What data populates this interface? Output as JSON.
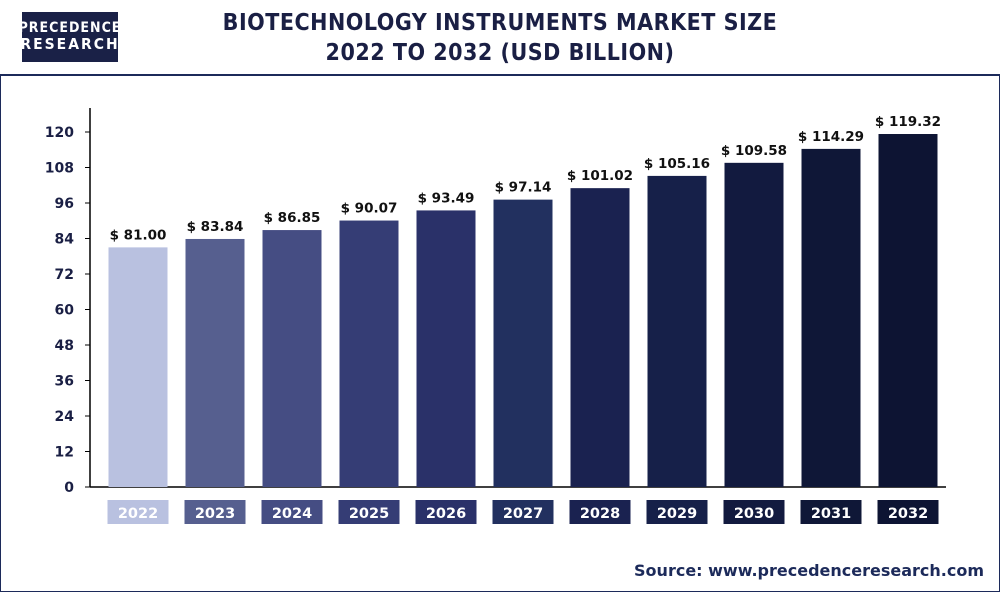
{
  "header": {
    "logo_line1": "PRECEDENCE",
    "logo_line2": "RESEARCH",
    "title_line1": "BIOTECHNOLOGY INSTRUMENTS MARKET SIZE",
    "title_line2": "2022 TO 2032 (USD BILLION)"
  },
  "footer": {
    "source": "Source: www.precedenceresearch.com"
  },
  "chart_data": {
    "type": "bar",
    "title": "BIOTECHNOLOGY INSTRUMENTS MARKET SIZE 2022 TO 2032 (USD BILLION)",
    "xlabel": "",
    "ylabel": "",
    "categories": [
      "2022",
      "2023",
      "2024",
      "2025",
      "2026",
      "2027",
      "2028",
      "2029",
      "2030",
      "2031",
      "2032"
    ],
    "values": [
      81.0,
      83.84,
      86.85,
      90.07,
      93.49,
      97.14,
      101.02,
      105.16,
      109.58,
      114.29,
      119.32
    ],
    "value_labels": [
      "$ 81.00",
      "$ 83.84",
      "$ 86.85",
      "$ 90.07",
      "$ 93.49",
      "$ 97.14",
      "$ 101.02",
      "$ 105.16",
      "$ 109.58",
      "$ 114.29",
      "$ 119.32"
    ],
    "yticks": [
      0,
      12,
      24,
      36,
      48,
      60,
      72,
      84,
      96,
      108,
      120
    ],
    "ylim": [
      0,
      120
    ],
    "grid": false,
    "legend": "none",
    "colors": [
      "#b9c1e0",
      "#565f8f",
      "#454d83",
      "#353d75",
      "#2a3169",
      "#22305f",
      "#1a2250",
      "#162049",
      "#121a3f",
      "#0f1737",
      "#0d1433"
    ],
    "label_colors": [
      "#ffffff",
      "#ffffff",
      "#ffffff",
      "#ffffff",
      "#ffffff",
      "#ffffff",
      "#ffffff",
      "#ffffff",
      "#ffffff",
      "#ffffff",
      "#ffffff"
    ]
  }
}
